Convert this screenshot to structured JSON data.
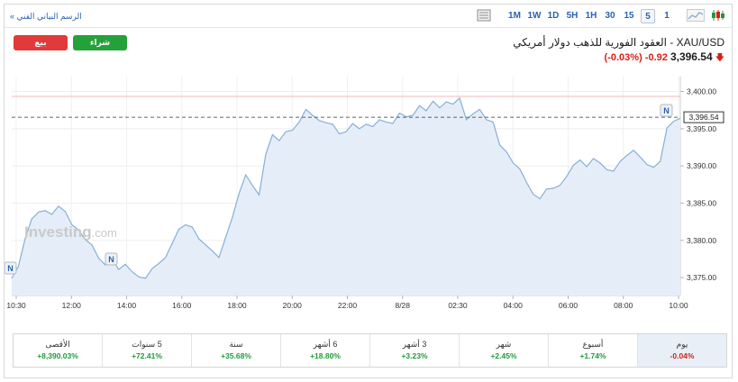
{
  "toolbar": {
    "technical_chart_link": "الرسم البياني الفني »",
    "timeframes": [
      "1M",
      "1W",
      "1D",
      "5H",
      "1H",
      "30",
      "15",
      "5",
      "1"
    ],
    "active_timeframe": "5"
  },
  "header": {
    "sell_label": "بيع",
    "buy_label": "شراء",
    "title": "XAU/USD - العقود الفورية للذهب دولار أمريكي",
    "price": "3,396.54",
    "change": "-0.92",
    "change_pct": "(-0.03%)"
  },
  "chart": {
    "watermark": "Investing",
    "watermark_suffix": ".com",
    "current_price_label": "3,396.54",
    "event_marker": "N",
    "colors": {
      "line": "#86afd9",
      "fill": "#e5eef8",
      "accent": "#2a62b0",
      "positive": "#1f9b3a",
      "negative": "#d91e18"
    }
  },
  "chart_data": {
    "type": "area",
    "x_tick_labels": [
      "10:30",
      "12:00",
      "14:00",
      "16:00",
      "18:00",
      "20:00",
      "22:00",
      "8/28",
      "02:30",
      "04:00",
      "06:00",
      "08:00",
      "10:00"
    ],
    "y_tick_labels": [
      "3,400.00",
      "3,395.00",
      "3,390.00",
      "3,385.00",
      "3,380.00",
      "3,375.00"
    ],
    "ylim": [
      3372.6,
      3402.0
    ],
    "y_ticks": [
      3400,
      3395,
      3390,
      3385,
      3380,
      3375
    ],
    "last_price": 3396.54,
    "x_domain": [
      0,
      100
    ],
    "x": [
      0,
      1,
      2,
      3,
      4,
      5,
      6,
      7,
      8,
      9,
      10,
      11,
      12,
      13,
      14,
      15,
      16,
      17,
      18,
      19,
      20,
      21,
      22,
      23,
      24,
      25,
      26,
      27,
      28,
      29,
      30,
      31,
      32,
      33,
      34,
      35,
      36,
      37,
      38,
      39,
      40,
      41,
      42,
      43,
      44,
      45,
      46,
      47,
      48,
      49,
      50,
      51,
      52,
      53,
      54,
      55,
      56,
      57,
      58,
      59,
      60,
      61,
      62,
      63,
      64,
      65,
      66,
      67,
      68,
      69,
      70,
      71,
      72,
      73,
      74,
      75,
      76,
      77,
      78,
      79,
      80,
      81,
      82,
      83,
      84,
      85,
      86,
      87,
      88,
      89,
      90,
      91,
      92,
      93,
      94,
      95,
      96,
      97,
      98,
      99,
      100
    ],
    "values": [
      3374.9,
      3376.5,
      3380.2,
      3382.9,
      3383.8,
      3384.0,
      3383.5,
      3384.6,
      3383.9,
      3382.1,
      3381.4,
      3380.1,
      3379.4,
      3377.6,
      3376.7,
      3377.5,
      3376.1,
      3376.8,
      3375.8,
      3375.1,
      3374.9,
      3376.2,
      3376.9,
      3377.7,
      3379.6,
      3381.5,
      3382.1,
      3381.8,
      3380.2,
      3379.4,
      3378.6,
      3377.7,
      3380.4,
      3383.1,
      3386.3,
      3388.8,
      3387.4,
      3386.1,
      3391.6,
      3394.2,
      3393.4,
      3394.6,
      3394.8,
      3395.9,
      3397.6,
      3396.8,
      3396.1,
      3395.8,
      3395.6,
      3394.3,
      3394.6,
      3395.7,
      3395.0,
      3395.6,
      3395.3,
      3396.2,
      3395.9,
      3395.7,
      3397.1,
      3396.6,
      3396.8,
      3398.1,
      3397.4,
      3398.7,
      3397.8,
      3398.6,
      3398.3,
      3399.1,
      3396.2,
      3397.0,
      3397.6,
      3396.2,
      3395.9,
      3392.8,
      3391.9,
      3390.4,
      3389.6,
      3387.8,
      3386.2,
      3385.6,
      3386.9,
      3387.0,
      3387.4,
      3388.6,
      3390.1,
      3390.8,
      3389.9,
      3391.0,
      3390.4,
      3389.5,
      3389.3,
      3390.6,
      3391.4,
      3392.1,
      3391.2,
      3390.2,
      3389.8,
      3390.6,
      3395.1,
      3396.0,
      3396.4
    ]
  },
  "periods": [
    {
      "label": "الأقصى",
      "value": "+8,390.03%",
      "sign": "pos"
    },
    {
      "label": "5 سنوات",
      "value": "+72.41%",
      "sign": "pos"
    },
    {
      "label": "سنة",
      "value": "+35.68%",
      "sign": "pos"
    },
    {
      "label": "6 أشهر",
      "value": "+18.80%",
      "sign": "pos"
    },
    {
      "label": "3 أشهر",
      "value": "+3.23%",
      "sign": "pos"
    },
    {
      "label": "شهر",
      "value": "+2.45%",
      "sign": "pos"
    },
    {
      "label": "أسبوع",
      "value": "+1.74%",
      "sign": "pos"
    },
    {
      "label": "يوم",
      "value": "-0.04%",
      "sign": "neg"
    }
  ]
}
